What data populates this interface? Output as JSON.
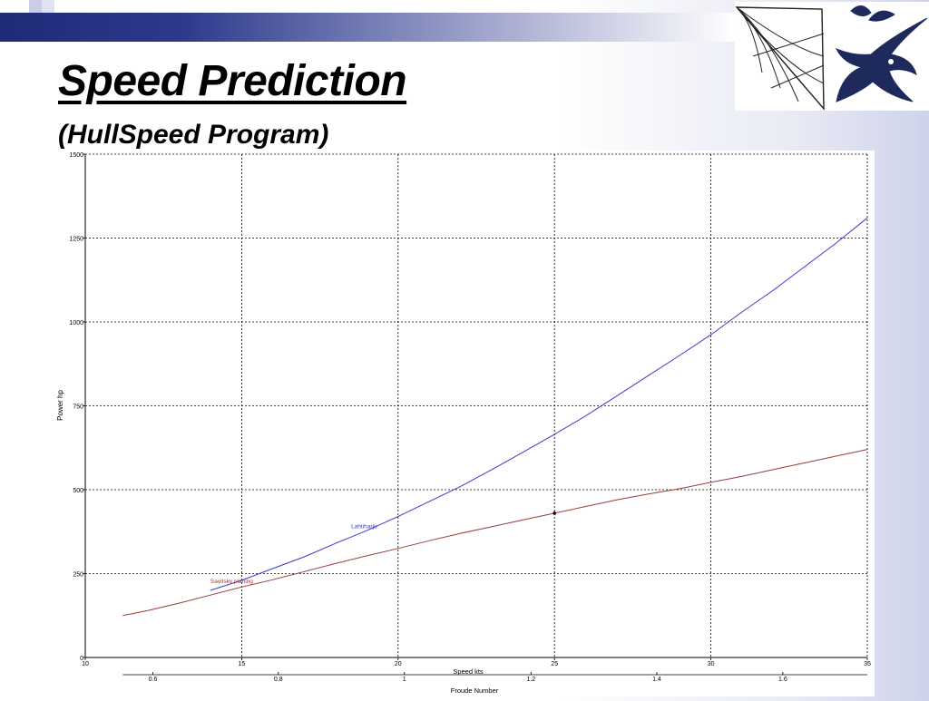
{
  "slide": {
    "title": "Speed Prediction",
    "subtitle": "(HullSpeed Program)"
  },
  "icons": {
    "corner_squares": "decorative-squares-icon",
    "sail_logo": "sail-icon",
    "fish_logo": "marlin-icon"
  },
  "colors": {
    "bar_dark": "#1f2a78",
    "series_lahtiharju": "#3a3ad0",
    "series_savitsky": "#9c3a3a",
    "grid": "#000000"
  },
  "chart_data": {
    "type": "line",
    "xlabel": "Speed  kts",
    "ylabel": "Power  hp",
    "x2label": "Froude Number",
    "xlim": [
      10,
      35
    ],
    "ylim": [
      0,
      1500
    ],
    "xticks": [
      "10",
      "15",
      "20",
      "25",
      "30",
      "35"
    ],
    "yticks": [
      "0",
      "250",
      "500",
      "750",
      "1000",
      "1250",
      "1500"
    ],
    "froude_ticks": [
      {
        "label": "0.6",
        "speed": 12.16
      },
      {
        "label": "0.8",
        "speed": 16.17
      },
      {
        "label": "1",
        "speed": 20.2
      },
      {
        "label": "1.2",
        "speed": 24.25
      },
      {
        "label": "1.4",
        "speed": 28.27
      },
      {
        "label": "1.6",
        "speed": 32.3
      }
    ],
    "grid": true,
    "series": [
      {
        "name": "Lahtiharju",
        "color": "#3a3ad0",
        "x": [
          14,
          15,
          16,
          17,
          18,
          19,
          20,
          21,
          22,
          23,
          24,
          25,
          26,
          27,
          28,
          29,
          30,
          31,
          32,
          33,
          34,
          35
        ],
        "y": [
          200,
          230,
          265,
          300,
          340,
          378,
          420,
          465,
          510,
          560,
          612,
          665,
          720,
          780,
          840,
          900,
          962,
          1030,
          1095,
          1165,
          1235,
          1310
        ]
      },
      {
        "name": "Savitsky planing",
        "color": "#9c3a3a",
        "x": [
          11.2,
          12,
          13,
          14,
          15,
          16,
          17,
          18,
          19,
          20,
          21,
          22,
          23,
          24,
          25,
          26,
          27,
          28,
          29,
          30,
          31,
          32,
          33,
          34,
          35
        ],
        "y": [
          125,
          140,
          162,
          186,
          210,
          232,
          256,
          280,
          303,
          325,
          348,
          370,
          390,
          410,
          430,
          450,
          470,
          487,
          503,
          522,
          540,
          560,
          580,
          600,
          620
        ]
      }
    ],
    "annotations": [
      {
        "text": "Lahtiharju",
        "x": 18.5,
        "y": 385
      },
      {
        "text": "Savitsky planing",
        "x": 14,
        "y": 222
      }
    ],
    "markers": [
      {
        "x": 25,
        "y": 430
      }
    ]
  }
}
